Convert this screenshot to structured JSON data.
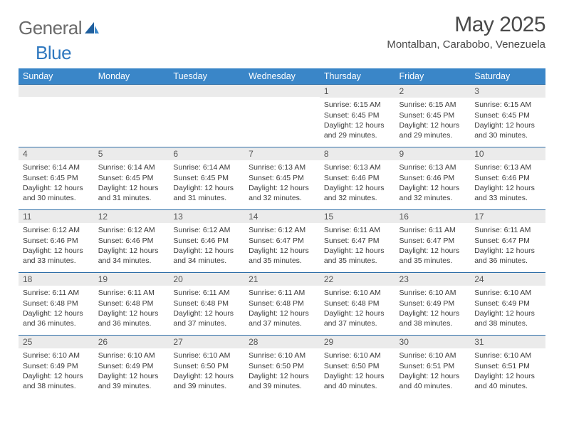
{
  "logo": {
    "general": "General",
    "blue": "Blue"
  },
  "title": "May 2025",
  "location": "Montalban, Carabobo, Venezuela",
  "colors": {
    "headerBg": "#3a86c8",
    "headerText": "#ffffff",
    "rowDivider": "#2f6fa8",
    "dayNumBg": "#ebebeb",
    "bodyText": "#3b3b3b",
    "logoGray": "#6b6b6b",
    "logoBlue": "#2f78bf"
  },
  "weekdays": [
    "Sunday",
    "Monday",
    "Tuesday",
    "Wednesday",
    "Thursday",
    "Friday",
    "Saturday"
  ],
  "weeks": [
    [
      {
        "n": "",
        "sr": "",
        "ss": "",
        "dl": ""
      },
      {
        "n": "",
        "sr": "",
        "ss": "",
        "dl": ""
      },
      {
        "n": "",
        "sr": "",
        "ss": "",
        "dl": ""
      },
      {
        "n": "",
        "sr": "",
        "ss": "",
        "dl": ""
      },
      {
        "n": "1",
        "sr": "Sunrise: 6:15 AM",
        "ss": "Sunset: 6:45 PM",
        "dl": "Daylight: 12 hours and 29 minutes."
      },
      {
        "n": "2",
        "sr": "Sunrise: 6:15 AM",
        "ss": "Sunset: 6:45 PM",
        "dl": "Daylight: 12 hours and 29 minutes."
      },
      {
        "n": "3",
        "sr": "Sunrise: 6:15 AM",
        "ss": "Sunset: 6:45 PM",
        "dl": "Daylight: 12 hours and 30 minutes."
      }
    ],
    [
      {
        "n": "4",
        "sr": "Sunrise: 6:14 AM",
        "ss": "Sunset: 6:45 PM",
        "dl": "Daylight: 12 hours and 30 minutes."
      },
      {
        "n": "5",
        "sr": "Sunrise: 6:14 AM",
        "ss": "Sunset: 6:45 PM",
        "dl": "Daylight: 12 hours and 31 minutes."
      },
      {
        "n": "6",
        "sr": "Sunrise: 6:14 AM",
        "ss": "Sunset: 6:45 PM",
        "dl": "Daylight: 12 hours and 31 minutes."
      },
      {
        "n": "7",
        "sr": "Sunrise: 6:13 AM",
        "ss": "Sunset: 6:45 PM",
        "dl": "Daylight: 12 hours and 32 minutes."
      },
      {
        "n": "8",
        "sr": "Sunrise: 6:13 AM",
        "ss": "Sunset: 6:46 PM",
        "dl": "Daylight: 12 hours and 32 minutes."
      },
      {
        "n": "9",
        "sr": "Sunrise: 6:13 AM",
        "ss": "Sunset: 6:46 PM",
        "dl": "Daylight: 12 hours and 32 minutes."
      },
      {
        "n": "10",
        "sr": "Sunrise: 6:13 AM",
        "ss": "Sunset: 6:46 PM",
        "dl": "Daylight: 12 hours and 33 minutes."
      }
    ],
    [
      {
        "n": "11",
        "sr": "Sunrise: 6:12 AM",
        "ss": "Sunset: 6:46 PM",
        "dl": "Daylight: 12 hours and 33 minutes."
      },
      {
        "n": "12",
        "sr": "Sunrise: 6:12 AM",
        "ss": "Sunset: 6:46 PM",
        "dl": "Daylight: 12 hours and 34 minutes."
      },
      {
        "n": "13",
        "sr": "Sunrise: 6:12 AM",
        "ss": "Sunset: 6:46 PM",
        "dl": "Daylight: 12 hours and 34 minutes."
      },
      {
        "n": "14",
        "sr": "Sunrise: 6:12 AM",
        "ss": "Sunset: 6:47 PM",
        "dl": "Daylight: 12 hours and 35 minutes."
      },
      {
        "n": "15",
        "sr": "Sunrise: 6:11 AM",
        "ss": "Sunset: 6:47 PM",
        "dl": "Daylight: 12 hours and 35 minutes."
      },
      {
        "n": "16",
        "sr": "Sunrise: 6:11 AM",
        "ss": "Sunset: 6:47 PM",
        "dl": "Daylight: 12 hours and 35 minutes."
      },
      {
        "n": "17",
        "sr": "Sunrise: 6:11 AM",
        "ss": "Sunset: 6:47 PM",
        "dl": "Daylight: 12 hours and 36 minutes."
      }
    ],
    [
      {
        "n": "18",
        "sr": "Sunrise: 6:11 AM",
        "ss": "Sunset: 6:48 PM",
        "dl": "Daylight: 12 hours and 36 minutes."
      },
      {
        "n": "19",
        "sr": "Sunrise: 6:11 AM",
        "ss": "Sunset: 6:48 PM",
        "dl": "Daylight: 12 hours and 36 minutes."
      },
      {
        "n": "20",
        "sr": "Sunrise: 6:11 AM",
        "ss": "Sunset: 6:48 PM",
        "dl": "Daylight: 12 hours and 37 minutes."
      },
      {
        "n": "21",
        "sr": "Sunrise: 6:11 AM",
        "ss": "Sunset: 6:48 PM",
        "dl": "Daylight: 12 hours and 37 minutes."
      },
      {
        "n": "22",
        "sr": "Sunrise: 6:10 AM",
        "ss": "Sunset: 6:48 PM",
        "dl": "Daylight: 12 hours and 37 minutes."
      },
      {
        "n": "23",
        "sr": "Sunrise: 6:10 AM",
        "ss": "Sunset: 6:49 PM",
        "dl": "Daylight: 12 hours and 38 minutes."
      },
      {
        "n": "24",
        "sr": "Sunrise: 6:10 AM",
        "ss": "Sunset: 6:49 PM",
        "dl": "Daylight: 12 hours and 38 minutes."
      }
    ],
    [
      {
        "n": "25",
        "sr": "Sunrise: 6:10 AM",
        "ss": "Sunset: 6:49 PM",
        "dl": "Daylight: 12 hours and 38 minutes."
      },
      {
        "n": "26",
        "sr": "Sunrise: 6:10 AM",
        "ss": "Sunset: 6:49 PM",
        "dl": "Daylight: 12 hours and 39 minutes."
      },
      {
        "n": "27",
        "sr": "Sunrise: 6:10 AM",
        "ss": "Sunset: 6:50 PM",
        "dl": "Daylight: 12 hours and 39 minutes."
      },
      {
        "n": "28",
        "sr": "Sunrise: 6:10 AM",
        "ss": "Sunset: 6:50 PM",
        "dl": "Daylight: 12 hours and 39 minutes."
      },
      {
        "n": "29",
        "sr": "Sunrise: 6:10 AM",
        "ss": "Sunset: 6:50 PM",
        "dl": "Daylight: 12 hours and 40 minutes."
      },
      {
        "n": "30",
        "sr": "Sunrise: 6:10 AM",
        "ss": "Sunset: 6:51 PM",
        "dl": "Daylight: 12 hours and 40 minutes."
      },
      {
        "n": "31",
        "sr": "Sunrise: 6:10 AM",
        "ss": "Sunset: 6:51 PM",
        "dl": "Daylight: 12 hours and 40 minutes."
      }
    ]
  ]
}
